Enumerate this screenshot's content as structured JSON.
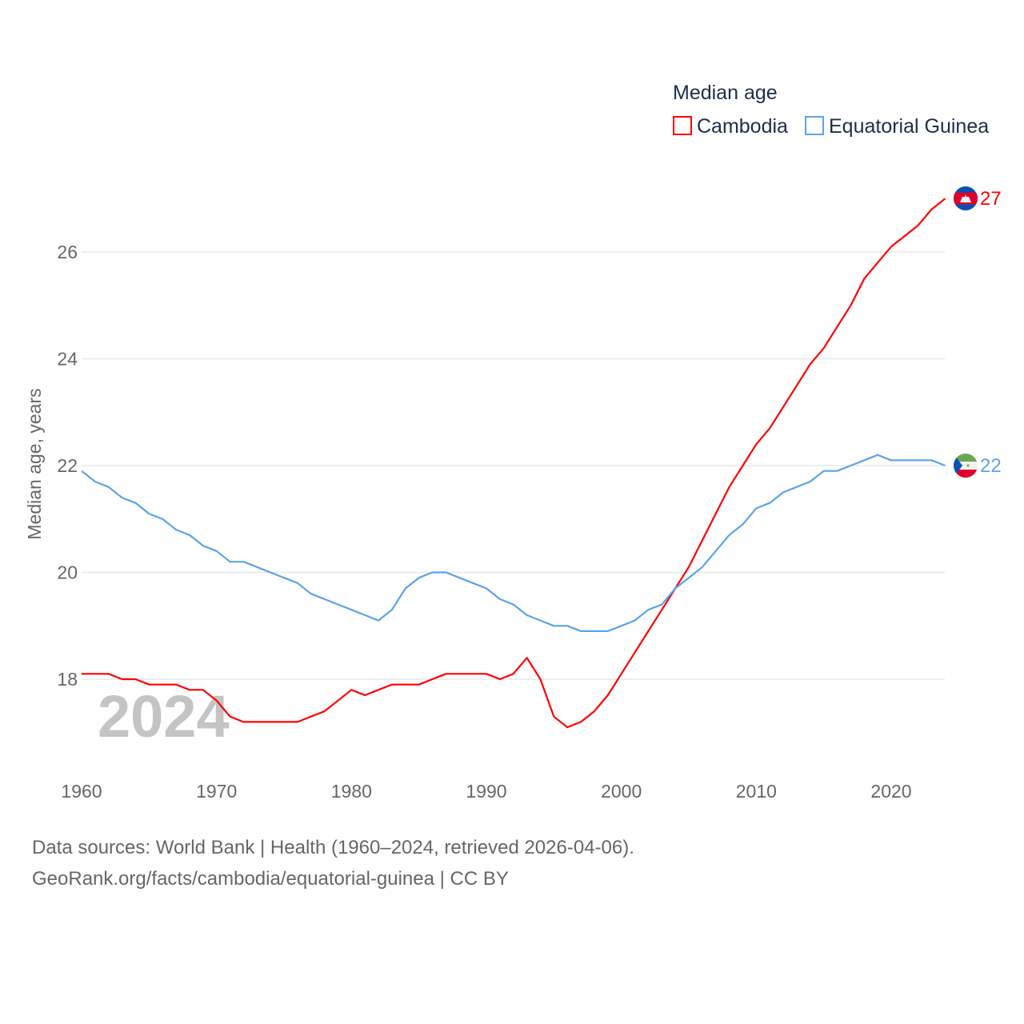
{
  "chart_data": {
    "type": "line",
    "title": "",
    "ylabel": "Median age, years",
    "xlabel": "",
    "xlim": [
      1960,
      2024
    ],
    "ylim": [
      16.5,
      27.5
    ],
    "x_ticks": [
      1960,
      1970,
      1980,
      1990,
      2000,
      2010,
      2020
    ],
    "y_ticks": [
      18,
      20,
      22,
      24,
      26
    ],
    "grid": true,
    "legend_title": "Median age",
    "legend_position": "top-right",
    "watermark_year": "2024",
    "x": [
      1960,
      1961,
      1962,
      1963,
      1964,
      1965,
      1966,
      1967,
      1968,
      1969,
      1970,
      1971,
      1972,
      1973,
      1974,
      1975,
      1976,
      1977,
      1978,
      1979,
      1980,
      1981,
      1982,
      1983,
      1984,
      1985,
      1986,
      1987,
      1988,
      1989,
      1990,
      1991,
      1992,
      1993,
      1994,
      1995,
      1996,
      1997,
      1998,
      1999,
      2000,
      2001,
      2002,
      2003,
      2004,
      2005,
      2006,
      2007,
      2008,
      2009,
      2010,
      2011,
      2012,
      2013,
      2014,
      2015,
      2016,
      2017,
      2018,
      2019,
      2020,
      2021,
      2022,
      2023,
      2024
    ],
    "series": [
      {
        "name": "Cambodia",
        "color": "#ff0000",
        "end_label": "27",
        "values": [
          18.1,
          18.1,
          18.1,
          18.0,
          18.0,
          17.9,
          17.9,
          17.9,
          17.8,
          17.8,
          17.6,
          17.3,
          17.2,
          17.2,
          17.2,
          17.2,
          17.2,
          17.3,
          17.4,
          17.6,
          17.8,
          17.7,
          17.8,
          17.9,
          17.9,
          17.9,
          18.0,
          18.1,
          18.1,
          18.1,
          18.1,
          18.0,
          18.1,
          18.4,
          18.0,
          17.3,
          17.1,
          17.2,
          17.4,
          17.7,
          18.1,
          18.5,
          18.9,
          19.3,
          19.7,
          20.1,
          20.6,
          21.1,
          21.6,
          22.0,
          22.4,
          22.7,
          23.1,
          23.5,
          23.9,
          24.2,
          24.6,
          25.0,
          25.5,
          25.8,
          26.1,
          26.3,
          26.5,
          26.8,
          27.0
        ]
      },
      {
        "name": "Equatorial Guinea",
        "color": "#5ba3ea",
        "end_label": "22",
        "values": [
          21.9,
          21.7,
          21.6,
          21.4,
          21.3,
          21.1,
          21.0,
          20.8,
          20.7,
          20.5,
          20.4,
          20.2,
          20.2,
          20.1,
          20.0,
          19.9,
          19.8,
          19.6,
          19.5,
          19.4,
          19.3,
          19.2,
          19.1,
          19.3,
          19.7,
          19.9,
          20.0,
          20.0,
          19.9,
          19.8,
          19.7,
          19.5,
          19.4,
          19.2,
          19.1,
          19.0,
          19.0,
          18.9,
          18.9,
          18.9,
          19.0,
          19.1,
          19.3,
          19.4,
          19.7,
          19.9,
          20.1,
          20.4,
          20.7,
          20.9,
          21.2,
          21.3,
          21.5,
          21.6,
          21.7,
          21.9,
          21.9,
          22.0,
          22.1,
          22.2,
          22.1,
          22.1,
          22.1,
          22.1,
          22.0
        ]
      }
    ]
  },
  "footer": {
    "line1": "Data sources: World Bank | Health (1960–2024, retrieved 2026-04-06).",
    "line2": "GeoRank.org/facts/cambodia/equatorial-guinea | CC BY"
  }
}
